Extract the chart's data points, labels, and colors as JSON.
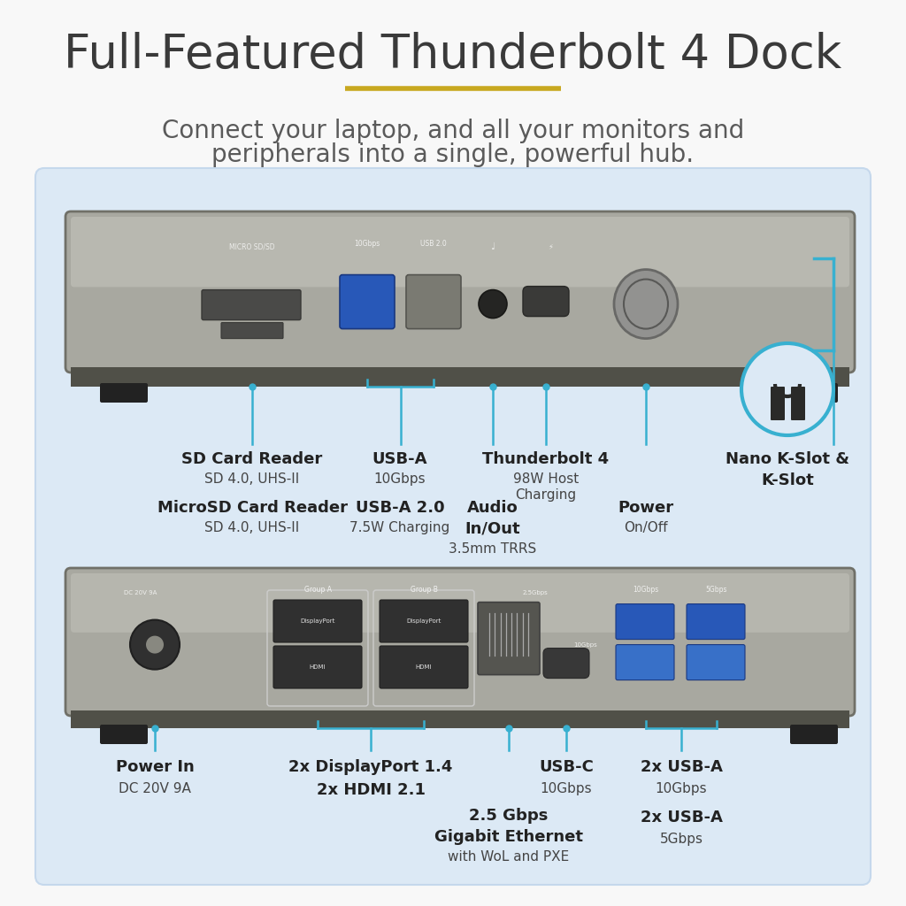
{
  "bg_color": "#f8f8f8",
  "panel_bg": "#dce9f5",
  "panel_edge": "#c5d8ec",
  "title": "Full-Featured Thunderbolt 4 Dock",
  "title_color": "#3a3a3a",
  "subtitle_line1": "Connect your laptop, and all your monitors and",
  "subtitle_line2": "peripherals into a single, powerful hub.",
  "subtitle_color": "#5a5a5a",
  "accent_color": "#c8a820",
  "line_color": "#38b0d0",
  "dock_body": "#a8a8a0",
  "dock_top": "#c0c0b8",
  "dock_bottom_strip": "#505048",
  "dock_foot": "#222222",
  "port_dark": "#3a3a38",
  "port_usb3_blue": "#2858b8",
  "port_mid": "#707068"
}
